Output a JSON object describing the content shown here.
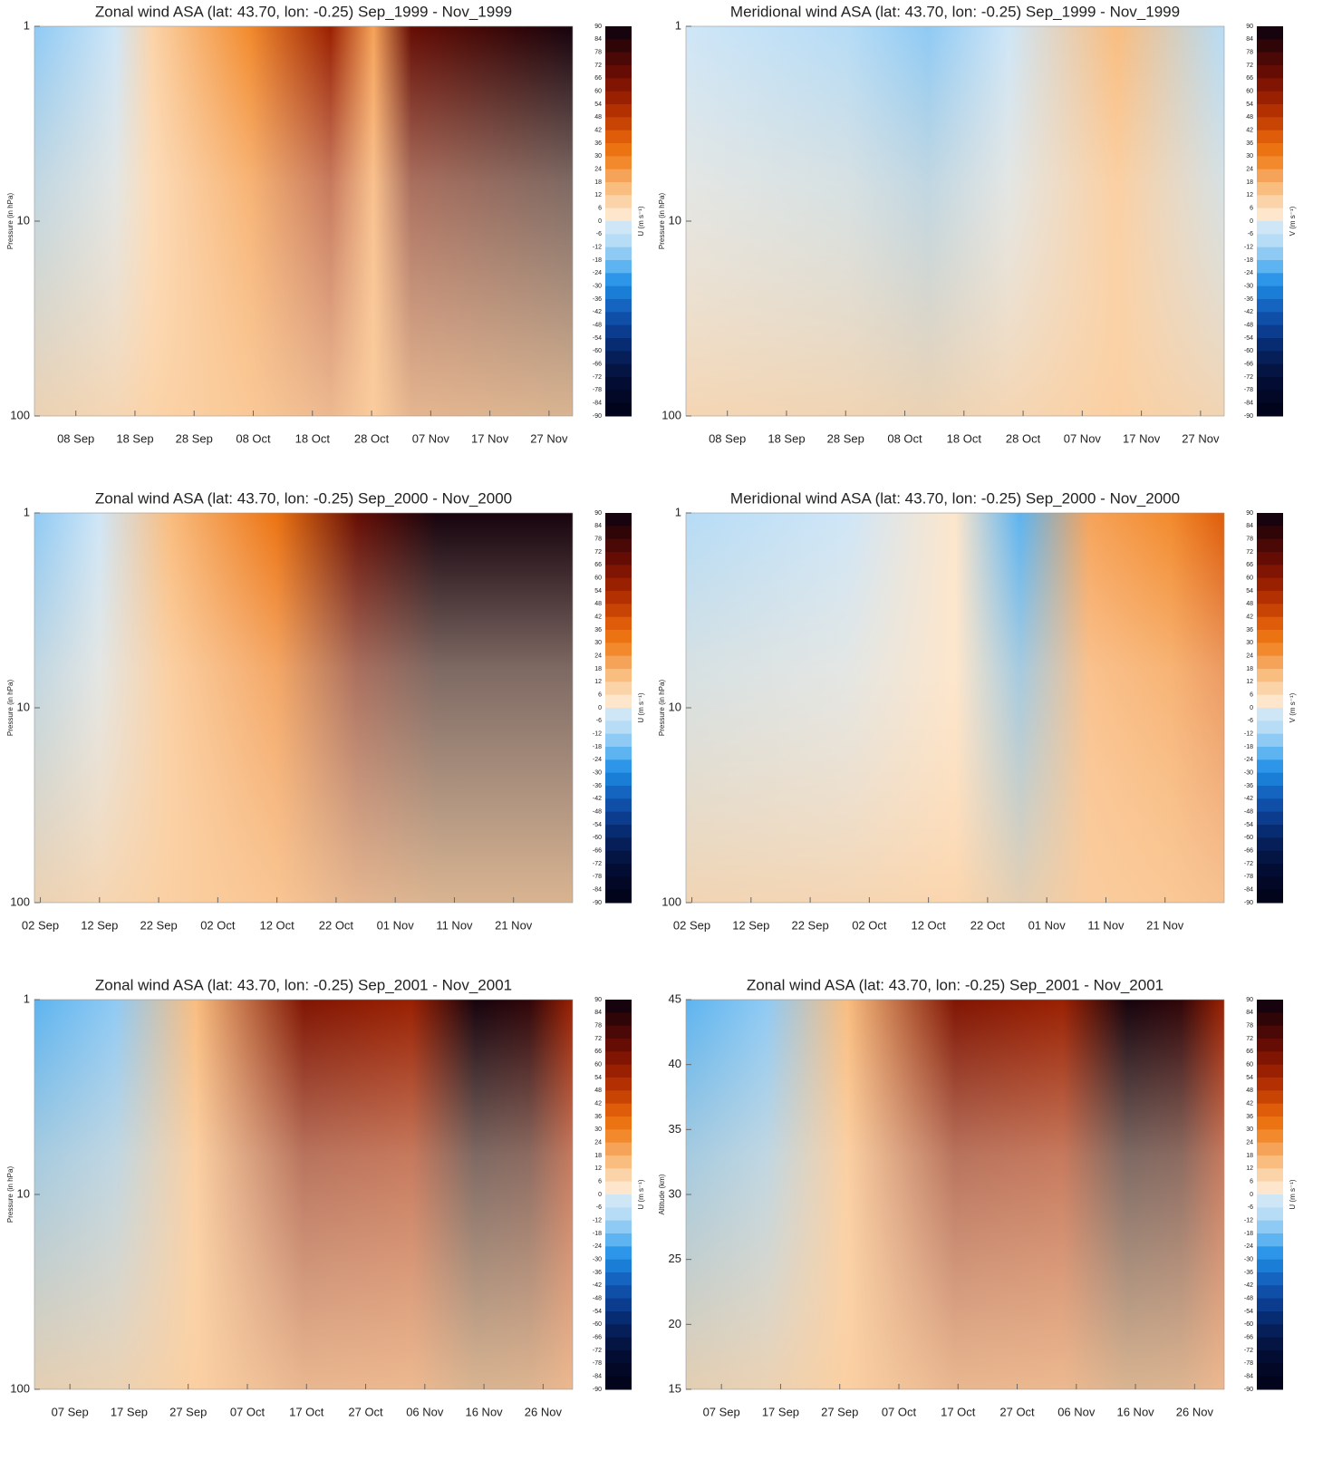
{
  "chart_data": [
    {
      "type": "contour",
      "title": "Zonal wind ASA (lat: 43.70, lon: -0.25) Sep_1999 - Nov_1999",
      "ylabel": "Pressure (in hPa)",
      "ylog": true,
      "ylim": [
        100,
        1
      ],
      "yticks": [
        1,
        10,
        100
      ],
      "xlim": [
        "1999-09-01",
        "1999-12-01"
      ],
      "xticks": [
        {
          "value": "1999-09-08",
          "label": "08 Sep"
        },
        {
          "value": "1999-09-18",
          "label": "18 Sep"
        },
        {
          "value": "1999-09-28",
          "label": "28 Sep"
        },
        {
          "value": "1999-10-08",
          "label": "08 Oct"
        },
        {
          "value": "1999-10-18",
          "label": "18 Oct"
        },
        {
          "value": "1999-10-28",
          "label": "28 Oct"
        },
        {
          "value": "1999-11-07",
          "label": "07 Nov"
        },
        {
          "value": "1999-11-17",
          "label": "17 Nov"
        },
        {
          "value": "1999-11-27",
          "label": "27 Nov"
        }
      ],
      "colorbar_label": "U (m s⁻¹)",
      "colorbar_ticks": [
        90,
        84,
        78,
        72,
        66,
        60,
        54,
        48,
        42,
        36,
        30,
        24,
        18,
        12,
        6,
        0,
        -6,
        -12,
        -18,
        -24,
        -30,
        -36,
        -42,
        -48,
        -54,
        -60,
        -66,
        -72,
        -78,
        -84,
        -90
      ],
      "colorbar_colors": [
        "#16030d",
        "#300508",
        "#4a0806",
        "#650d04",
        "#801503",
        "#9a2002",
        "#b33003",
        "#c84405",
        "#de5c0a",
        "#ec7312",
        "#f28a2d",
        "#f6a35a",
        "#f9bd80",
        "#fbd3a8",
        "#fde6cc",
        "#cfe6f7",
        "#b6dcf6",
        "#8fcaf4",
        "#5db4f0",
        "#2d96e8",
        "#1a7ed6",
        "#1464c0",
        "#0f4fa8",
        "#0b3c8d",
        "#082c72",
        "#061f58",
        "#041544",
        "#030d33",
        "#020826",
        "#01041a"
      ]
    },
    {
      "type": "contour",
      "title": "Meridional wind ASA (lat: 43.70, lon: -0.25) Sep_1999 - Nov_1999",
      "ylabel": "Pressure (in hPa)",
      "ylog": true,
      "ylim": [
        100,
        1
      ],
      "yticks": [
        1,
        10,
        100
      ],
      "xlim": [
        "1999-09-01",
        "1999-12-01"
      ],
      "xticks": [
        {
          "value": "1999-09-08",
          "label": "08 Sep"
        },
        {
          "value": "1999-09-18",
          "label": "18 Sep"
        },
        {
          "value": "1999-09-28",
          "label": "28 Sep"
        },
        {
          "value": "1999-10-08",
          "label": "08 Oct"
        },
        {
          "value": "1999-10-18",
          "label": "18 Oct"
        },
        {
          "value": "1999-10-28",
          "label": "28 Oct"
        },
        {
          "value": "1999-11-07",
          "label": "07 Nov"
        },
        {
          "value": "1999-11-17",
          "label": "17 Nov"
        },
        {
          "value": "1999-11-27",
          "label": "27 Nov"
        }
      ],
      "colorbar_label": "V (m s⁻¹)",
      "colorbar_ticks": [
        90,
        84,
        78,
        72,
        66,
        60,
        54,
        48,
        42,
        36,
        30,
        24,
        18,
        12,
        6,
        0,
        -6,
        -12,
        -18,
        -24,
        -30,
        -36,
        -42,
        -48,
        -54,
        -60,
        -66,
        -72,
        -78,
        -84,
        -90
      ],
      "colorbar_colors": [
        "#16030d",
        "#300508",
        "#4a0806",
        "#650d04",
        "#801503",
        "#9a2002",
        "#b33003",
        "#c84405",
        "#de5c0a",
        "#ec7312",
        "#f28a2d",
        "#f6a35a",
        "#f9bd80",
        "#fbd3a8",
        "#fde6cc",
        "#cfe6f7",
        "#b6dcf6",
        "#8fcaf4",
        "#5db4f0",
        "#2d96e8",
        "#1a7ed6",
        "#1464c0",
        "#0f4fa8",
        "#0b3c8d",
        "#082c72",
        "#061f58",
        "#041544",
        "#030d33",
        "#020826",
        "#01041a"
      ]
    },
    {
      "type": "contour",
      "title": "Zonal wind ASA (lat: 43.70, lon: -0.25) Sep_2000 - Nov_2000",
      "ylabel": "Pressure (in hPa)",
      "ylog": true,
      "ylim": [
        100,
        1
      ],
      "yticks": [
        1,
        10,
        100
      ],
      "xlim": [
        "2000-09-01",
        "2000-12-01"
      ],
      "xticks": [
        {
          "value": "2000-09-02",
          "label": "02 Sep"
        },
        {
          "value": "2000-09-12",
          "label": "12 Sep"
        },
        {
          "value": "2000-09-22",
          "label": "22 Sep"
        },
        {
          "value": "2000-10-02",
          "label": "02 Oct"
        },
        {
          "value": "2000-10-12",
          "label": "12 Oct"
        },
        {
          "value": "2000-10-22",
          "label": "22 Oct"
        },
        {
          "value": "2000-11-01",
          "label": "01 Nov"
        },
        {
          "value": "2000-11-11",
          "label": "11 Nov"
        },
        {
          "value": "2000-11-21",
          "label": "21 Nov"
        }
      ],
      "colorbar_label": "U (m s⁻¹)",
      "colorbar_ticks": [
        90,
        84,
        78,
        72,
        66,
        60,
        54,
        48,
        42,
        36,
        30,
        24,
        18,
        12,
        6,
        0,
        -6,
        -12,
        -18,
        -24,
        -30,
        -36,
        -42,
        -48,
        -54,
        -60,
        -66,
        -72,
        -78,
        -84,
        -90
      ],
      "colorbar_colors": [
        "#16030d",
        "#300508",
        "#4a0806",
        "#650d04",
        "#801503",
        "#9a2002",
        "#b33003",
        "#c84405",
        "#de5c0a",
        "#ec7312",
        "#f28a2d",
        "#f6a35a",
        "#f9bd80",
        "#fbd3a8",
        "#fde6cc",
        "#cfe6f7",
        "#b6dcf6",
        "#8fcaf4",
        "#5db4f0",
        "#2d96e8",
        "#1a7ed6",
        "#1464c0",
        "#0f4fa8",
        "#0b3c8d",
        "#082c72",
        "#061f58",
        "#041544",
        "#030d33",
        "#020826",
        "#01041a"
      ]
    },
    {
      "type": "contour",
      "title": "Meridional wind ASA (lat: 43.70, lon: -0.25) Sep_2000 - Nov_2000",
      "ylabel": "Pressure (in hPa)",
      "ylog": true,
      "ylim": [
        100,
        1
      ],
      "yticks": [
        1,
        10,
        100
      ],
      "xlim": [
        "2000-09-01",
        "2000-12-01"
      ],
      "xticks": [
        {
          "value": "2000-09-02",
          "label": "02 Sep"
        },
        {
          "value": "2000-09-12",
          "label": "12 Sep"
        },
        {
          "value": "2000-09-22",
          "label": "22 Sep"
        },
        {
          "value": "2000-10-02",
          "label": "02 Oct"
        },
        {
          "value": "2000-10-12",
          "label": "12 Oct"
        },
        {
          "value": "2000-10-22",
          "label": "22 Oct"
        },
        {
          "value": "2000-11-01",
          "label": "01 Nov"
        },
        {
          "value": "2000-11-11",
          "label": "11 Nov"
        },
        {
          "value": "2000-11-21",
          "label": "21 Nov"
        }
      ],
      "colorbar_label": "V (m s⁻¹)",
      "colorbar_ticks": [
        90,
        84,
        78,
        72,
        66,
        60,
        54,
        48,
        42,
        36,
        30,
        24,
        18,
        12,
        6,
        0,
        -6,
        -12,
        -18,
        -24,
        -30,
        -36,
        -42,
        -48,
        -54,
        -60,
        -66,
        -72,
        -78,
        -84,
        -90
      ],
      "colorbar_colors": [
        "#16030d",
        "#300508",
        "#4a0806",
        "#650d04",
        "#801503",
        "#9a2002",
        "#b33003",
        "#c84405",
        "#de5c0a",
        "#ec7312",
        "#f28a2d",
        "#f6a35a",
        "#f9bd80",
        "#fbd3a8",
        "#fde6cc",
        "#cfe6f7",
        "#b6dcf6",
        "#8fcaf4",
        "#5db4f0",
        "#2d96e8",
        "#1a7ed6",
        "#1464c0",
        "#0f4fa8",
        "#0b3c8d",
        "#082c72",
        "#061f58",
        "#041544",
        "#030d33",
        "#020826",
        "#01041a"
      ]
    },
    {
      "type": "contour",
      "title": "Zonal wind ASA (lat: 43.70, lon: -0.25) Sep_2001 - Nov_2001",
      "ylabel": "Pressure (in hPa)",
      "ylog": true,
      "ylim": [
        100,
        1
      ],
      "yticks": [
        1,
        10,
        100
      ],
      "xlim": [
        "2001-09-01",
        "2001-12-01"
      ],
      "xticks": [
        {
          "value": "2001-09-07",
          "label": "07 Sep"
        },
        {
          "value": "2001-09-17",
          "label": "17 Sep"
        },
        {
          "value": "2001-09-27",
          "label": "27 Sep"
        },
        {
          "value": "2001-10-07",
          "label": "07 Oct"
        },
        {
          "value": "2001-10-17",
          "label": "17 Oct"
        },
        {
          "value": "2001-10-27",
          "label": "27 Oct"
        },
        {
          "value": "2001-11-06",
          "label": "06 Nov"
        },
        {
          "value": "2001-11-16",
          "label": "16 Nov"
        },
        {
          "value": "2001-11-26",
          "label": "26 Nov"
        }
      ],
      "colorbar_label": "U (m s⁻¹)",
      "colorbar_ticks": [
        90,
        84,
        78,
        72,
        66,
        60,
        54,
        48,
        42,
        36,
        30,
        24,
        18,
        12,
        6,
        0,
        -6,
        -12,
        -18,
        -24,
        -30,
        -36,
        -42,
        -48,
        -54,
        -60,
        -66,
        -72,
        -78,
        -84,
        -90
      ],
      "colorbar_colors": [
        "#16030d",
        "#300508",
        "#4a0806",
        "#650d04",
        "#801503",
        "#9a2002",
        "#b33003",
        "#c84405",
        "#de5c0a",
        "#ec7312",
        "#f28a2d",
        "#f6a35a",
        "#f9bd80",
        "#fbd3a8",
        "#fde6cc",
        "#cfe6f7",
        "#b6dcf6",
        "#8fcaf4",
        "#5db4f0",
        "#2d96e8",
        "#1a7ed6",
        "#1464c0",
        "#0f4fa8",
        "#0b3c8d",
        "#082c72",
        "#061f58",
        "#041544",
        "#030d33",
        "#020826",
        "#01041a"
      ]
    },
    {
      "type": "contour",
      "title": "Zonal wind ASA (lat: 43.70, lon: -0.25) Sep_2001 - Nov_2001",
      "ylabel": "Altitude (km)",
      "ylog": false,
      "ylim": [
        15,
        45
      ],
      "yticks": [
        15,
        20,
        25,
        30,
        35,
        40,
        45
      ],
      "xlim": [
        "2001-09-01",
        "2001-12-01"
      ],
      "xticks": [
        {
          "value": "2001-09-07",
          "label": "07 Sep"
        },
        {
          "value": "2001-09-17",
          "label": "17 Sep"
        },
        {
          "value": "2001-09-27",
          "label": "27 Sep"
        },
        {
          "value": "2001-10-07",
          "label": "07 Oct"
        },
        {
          "value": "2001-10-17",
          "label": "17 Oct"
        },
        {
          "value": "2001-10-27",
          "label": "27 Oct"
        },
        {
          "value": "2001-11-06",
          "label": "06 Nov"
        },
        {
          "value": "2001-11-16",
          "label": "16 Nov"
        },
        {
          "value": "2001-11-26",
          "label": "26 Nov"
        }
      ],
      "colorbar_label": "U (m s⁻¹)",
      "colorbar_ticks": [
        90,
        84,
        78,
        72,
        66,
        60,
        54,
        48,
        42,
        36,
        30,
        24,
        18,
        12,
        6,
        0,
        -6,
        -12,
        -18,
        -24,
        -30,
        -36,
        -42,
        -48,
        -54,
        -60,
        -66,
        -72,
        -78,
        -84,
        -90
      ],
      "colorbar_colors": [
        "#16030d",
        "#300508",
        "#4a0806",
        "#650d04",
        "#801503",
        "#9a2002",
        "#b33003",
        "#c84405",
        "#de5c0a",
        "#ec7312",
        "#f28a2d",
        "#f6a35a",
        "#f9bd80",
        "#fbd3a8",
        "#fde6cc",
        "#cfe6f7",
        "#b6dcf6",
        "#8fcaf4",
        "#5db4f0",
        "#2d96e8",
        "#1a7ed6",
        "#1464c0",
        "#0f4fa8",
        "#0b3c8d",
        "#082c72",
        "#061f58",
        "#041544",
        "#030d33",
        "#020826",
        "#01041a"
      ]
    }
  ]
}
